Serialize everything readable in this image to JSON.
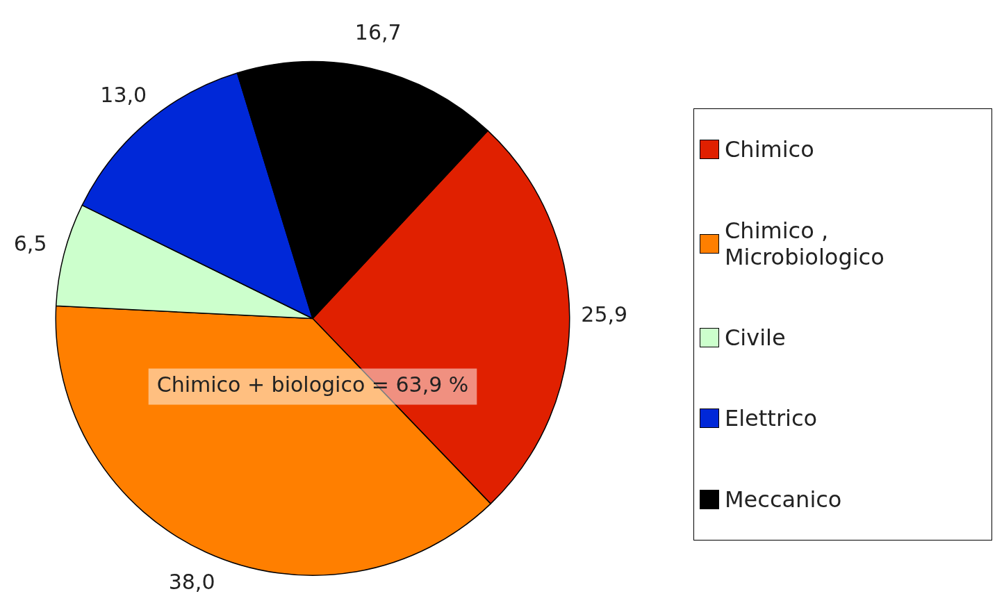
{
  "chart_data": {
    "type": "pie",
    "categories": [
      "Chimico",
      "Chimico , Microbiologico",
      "Civile",
      "Elettrico",
      "Meccanico"
    ],
    "values": [
      25.9,
      38.0,
      6.5,
      13.0,
      16.7
    ],
    "colors": [
      "#e02000",
      "#ff7f00",
      "#ccffcc",
      "#0028d8",
      "#000000"
    ],
    "value_labels": [
      "25,9",
      "38,0",
      "6,5",
      "13,0",
      "16,7"
    ],
    "annotations": [
      "Chimico + biologico = 63,9 %"
    ],
    "legend": "right"
  }
}
